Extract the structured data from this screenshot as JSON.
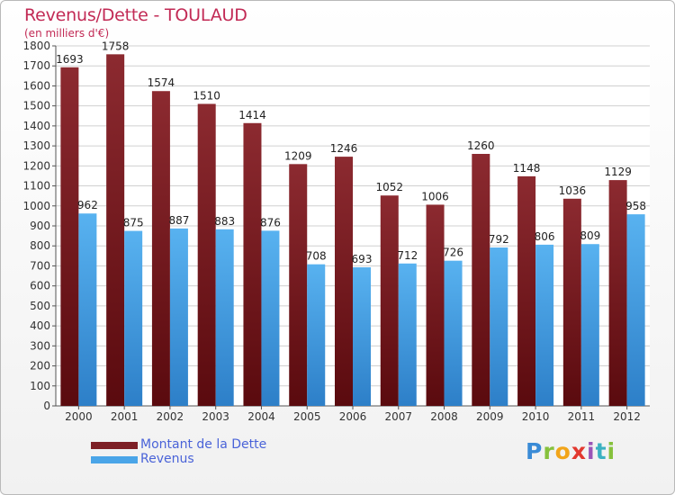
{
  "chart_data": {
    "type": "bar",
    "title": "Revenus/Dette - TOULAUD",
    "subtitle": "(en milliers d'€)",
    "categories": [
      "2000",
      "2001",
      "2002",
      "2003",
      "2004",
      "2005",
      "2006",
      "2007",
      "2008",
      "2009",
      "2010",
      "2011",
      "2012"
    ],
    "series": [
      {
        "name": "Montant de la Dette",
        "values": [
          1693,
          1758,
          1574,
          1510,
          1414,
          1209,
          1246,
          1052,
          1006,
          1260,
          1148,
          1036,
          1129
        ],
        "color": "#7d1f25"
      },
      {
        "name": "Revenus",
        "values": [
          962,
          875,
          887,
          883,
          876,
          708,
          693,
          712,
          726,
          792,
          806,
          809,
          958
        ],
        "color": "#4aa5e8"
      }
    ],
    "ylim": [
      0,
      1800
    ],
    "yticks": [
      0,
      100,
      200,
      300,
      400,
      500,
      600,
      700,
      800,
      900,
      1000,
      1100,
      1200,
      1300,
      1400,
      1500,
      1600,
      1700,
      1800
    ],
    "grid": true,
    "legend_position": "bottom-left"
  },
  "logo": {
    "text": "Proxiti",
    "letters": [
      "P",
      "r",
      "o",
      "x",
      "i",
      "t",
      "i"
    ]
  }
}
